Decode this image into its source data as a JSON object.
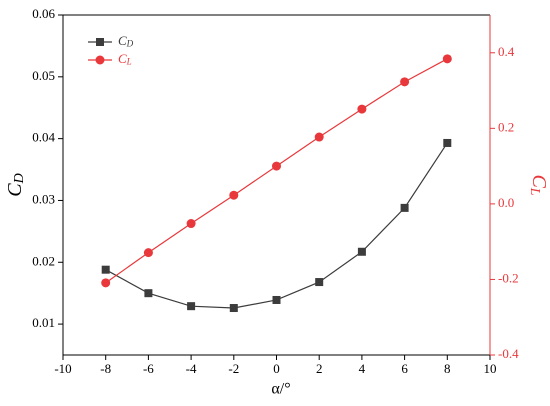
{
  "chart_data": {
    "type": "line",
    "x_label": "α/°",
    "y_label": "CD",
    "y2_label": "CL",
    "x": [
      -8,
      -6,
      -4,
      -2,
      0,
      2,
      4,
      6,
      8
    ],
    "series": [
      {
        "name": "CD",
        "color": "#3c3c3c",
        "marker": "square",
        "values": [
          0.0188,
          0.015,
          0.0129,
          0.0126,
          0.0139,
          0.0168,
          0.0217,
          0.0288,
          0.0393
        ]
      },
      {
        "name": "CL",
        "color": "#e8383b",
        "marker": "circle",
        "axis": "y2",
        "values": [
          -0.209,
          -0.129,
          -0.052,
          0.023,
          0.1,
          0.177,
          0.251,
          0.323,
          0.384
        ]
      }
    ],
    "xlim": [
      -10,
      10
    ],
    "xticks": [
      -10,
      -8,
      -6,
      -4,
      -2,
      0,
      2,
      4,
      6,
      8,
      10
    ],
    "ylim": [
      0.005,
      0.06
    ],
    "yticks": [
      0.01,
      0.02,
      0.03,
      0.04,
      0.05,
      0.06
    ],
    "y2lim": [
      -0.4,
      0.5
    ],
    "y2ticks": [
      -0.4,
      -0.2,
      {
        "value": 0,
        "label": "0.0"
      },
      0.2,
      0.4
    ],
    "legend": "upper left"
  }
}
